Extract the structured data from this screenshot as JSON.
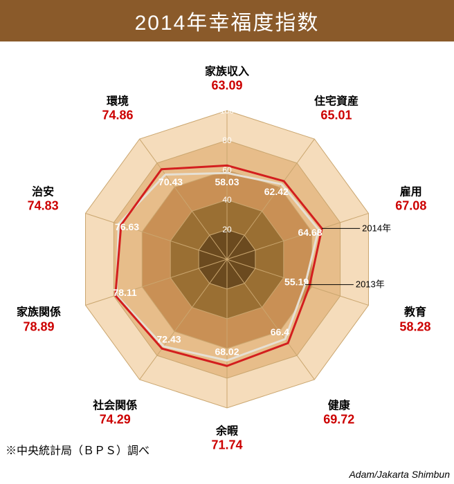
{
  "title": "2014年幸福度指数",
  "footnote": "※中央統計局（ＢＰＳ）調べ",
  "credit": "Adam/Jakarta Shimbun",
  "chart": {
    "type": "radar",
    "max": 100,
    "rings": [
      20,
      40,
      60,
      80,
      100
    ],
    "ring_colors": [
      "#6b4a1f",
      "#9a6f33",
      "#c99055",
      "#e7bd8a",
      "#f5dcbb"
    ],
    "background_color": "#ffffff",
    "grid_line_color": "#caa66f",
    "series_2014_color": "#d31e1e",
    "series_2013_color": "#e6e0d4",
    "legend": {
      "y2014": "2014年",
      "y2013": "2013年"
    },
    "axes": [
      {
        "name": "家族収入",
        "v2014": 63.09,
        "v2013": 58.03
      },
      {
        "name": "住宅資産",
        "v2014": 65.01,
        "v2013": 62.42
      },
      {
        "name": "雇用",
        "v2014": 67.08,
        "v2013": 64.68
      },
      {
        "name": "教育",
        "v2014": 58.28,
        "v2013": 55.19
      },
      {
        "name": "健康",
        "v2014": 69.72,
        "v2013": 66.4
      },
      {
        "name": "余暇",
        "v2014": 71.74,
        "v2013": 68.02
      },
      {
        "name": "社会関係",
        "v2014": 74.29,
        "v2013": 72.43
      },
      {
        "name": "家族関係",
        "v2014": 78.89,
        "v2013": 78.11
      },
      {
        "name": "治安",
        "v2014": 74.83,
        "v2013": 76.63
      },
      {
        "name": "環境",
        "v2014": 74.86,
        "v2013": 70.43
      }
    ]
  }
}
